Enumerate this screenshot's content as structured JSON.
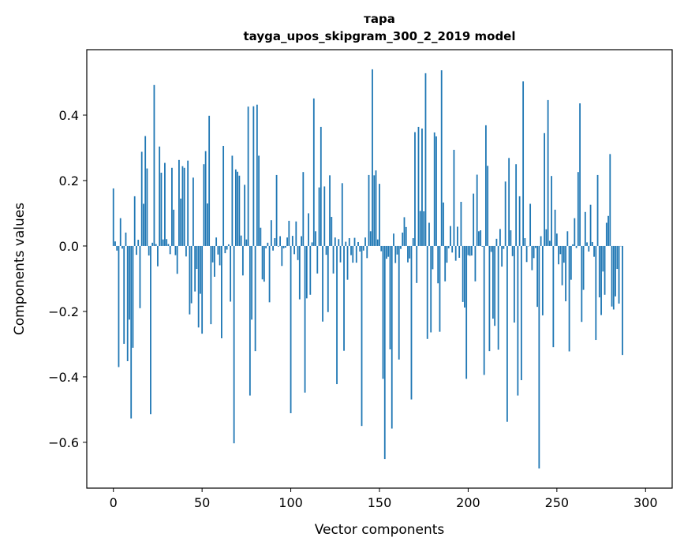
{
  "chart_data": {
    "type": "bar",
    "title": "тара",
    "subtitle": "tayga_upos_skipgram_300_2_2019 model",
    "xlabel": "Vector components",
    "ylabel": "Components values",
    "xlim": [
      -15,
      315
    ],
    "ylim": [
      -0.74,
      0.6
    ],
    "xticks": [
      0,
      50,
      100,
      150,
      200,
      250,
      300
    ],
    "xtick_labels": [
      "0",
      "50",
      "100",
      "150",
      "200",
      "250",
      "300"
    ],
    "yticks": [
      -0.6,
      -0.4,
      -0.2,
      0.0,
      0.2,
      0.4
    ],
    "ytick_labels": [
      "−0.6",
      "−0.4",
      "−0.2",
      "0.0",
      "0.2",
      "0.4"
    ],
    "bar_color": "#1f77b4",
    "grid": false,
    "values": [
      0.176,
      0.014,
      -0.014,
      -0.37,
      0.085,
      -0.008,
      -0.299,
      0.041,
      -0.352,
      -0.225,
      -0.527,
      -0.311,
      0.152,
      -0.027,
      0.019,
      -0.19,
      0.288,
      0.129,
      0.336,
      0.237,
      -0.029,
      -0.514,
      0.01,
      0.492,
      0.006,
      -0.062,
      0.304,
      0.224,
      0.02,
      0.254,
      0.021,
      0.006,
      -0.025,
      0.239,
      0.111,
      -0.028,
      -0.085,
      0.263,
      0.145,
      0.244,
      0.239,
      -0.032,
      0.261,
      -0.209,
      -0.175,
      0.209,
      -0.139,
      -0.07,
      -0.249,
      -0.146,
      -0.268,
      0.25,
      0.29,
      0.13,
      0.398,
      -0.239,
      -0.05,
      -0.094,
      0.026,
      -0.026,
      -0.059,
      -0.282,
      0.306,
      -0.022,
      -0.011,
      0.005,
      -0.17,
      0.276,
      -0.603,
      0.234,
      0.227,
      0.215,
      0.032,
      -0.09,
      0.187,
      0.02,
      0.426,
      -0.457,
      -0.225,
      0.427,
      -0.321,
      0.432,
      0.276,
      0.056,
      -0.102,
      -0.109,
      -0.007,
      0.01,
      -0.172,
      0.079,
      -0.014,
      0.024,
      0.217,
      -0.002,
      0.03,
      -0.061,
      -0.007,
      -0.005,
      0.026,
      0.077,
      -0.511,
      0.031,
      -0.025,
      0.075,
      -0.043,
      -0.163,
      0.03,
      0.226,
      -0.448,
      -0.16,
      0.1,
      -0.149,
      0.011,
      0.451,
      0.045,
      -0.084,
      0.179,
      0.364,
      -0.231,
      0.182,
      -0.027,
      -0.202,
      0.216,
      0.089,
      -0.084,
      0.026,
      -0.422,
      0.021,
      -0.05,
      0.192,
      -0.32,
      0.013,
      -0.103,
      0.024,
      -0.028,
      -0.051,
      0.025,
      -0.051,
      0.012,
      -0.017,
      -0.55,
      -0.014,
      0.026,
      -0.037,
      0.217,
      0.045,
      0.54,
      0.216,
      0.231,
      0.02,
      0.19,
      -0.016,
      -0.406,
      -0.651,
      -0.039,
      -0.033,
      -0.316,
      -0.558,
      0.038,
      -0.052,
      -0.026,
      -0.347,
      -0.009,
      0.041,
      0.088,
      0.058,
      -0.05,
      -0.038,
      -0.469,
      0.024,
      0.348,
      -0.113,
      0.364,
      0.107,
      0.359,
      0.106,
      0.528,
      -0.284,
      0.071,
      -0.264,
      -0.071,
      0.347,
      0.335,
      -0.114,
      -0.262,
      0.537,
      0.133,
      -0.108,
      -0.051,
      -0.007,
      0.061,
      -0.02,
      0.294,
      -0.045,
      0.059,
      -0.036,
      0.135,
      -0.171,
      -0.188,
      -0.406,
      -0.028,
      -0.03,
      -0.029,
      0.16,
      -0.108,
      0.218,
      0.045,
      0.048,
      -0.002,
      -0.394,
      0.369,
      0.245,
      -0.321,
      -0.018,
      -0.222,
      -0.244,
      0.022,
      -0.317,
      0.052,
      -0.063,
      -0.009,
      0.197,
      -0.537,
      0.269,
      0.048,
      -0.031,
      -0.234,
      0.25,
      -0.457,
      0.152,
      -0.41,
      0.503,
      0.024,
      -0.049,
      -0.001,
      0.129,
      -0.074,
      -0.037,
      -0.006,
      -0.186,
      -0.68,
      0.03,
      -0.212,
      0.345,
      0.051,
      0.446,
      0.016,
      0.214,
      -0.309,
      0.111,
      0.038,
      -0.056,
      -0.025,
      -0.12,
      -0.051,
      -0.169,
      0.045,
      -0.322,
      -0.103,
      0.005,
      0.085,
      -0.006,
      0.226,
      0.436,
      -0.232,
      -0.134,
      0.104,
      0.011,
      -0.017,
      0.126,
      0.012,
      -0.033,
      -0.287,
      0.217,
      -0.157,
      -0.211,
      -0.078,
      -0.149,
      0.071,
      0.092,
      0.281,
      -0.185,
      -0.194,
      -0.154,
      -0.07,
      -0.176,
      0.0,
      -0.333
    ]
  }
}
